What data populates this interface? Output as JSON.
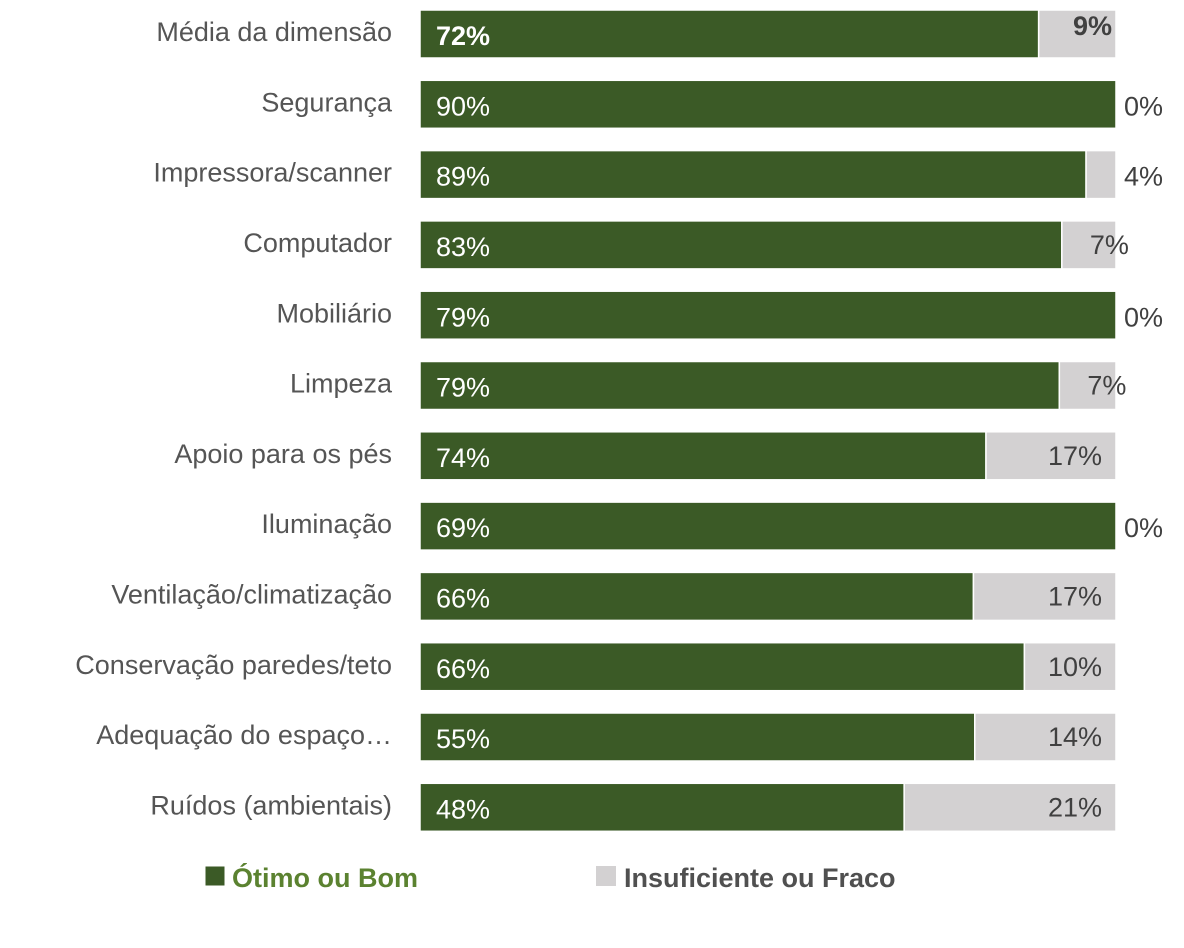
{
  "chart_data": {
    "type": "bar",
    "orientation": "horizontal",
    "stacking": "percent",
    "categories": [
      "Média da dimensão",
      "Segurança",
      "Impressora/scanner",
      "Computador",
      "Mobiliário",
      "Limpeza",
      "Apoio para os pés",
      "Iluminação",
      "Ventilação/climatização",
      "Conservação paredes/teto",
      "Adequação do espaço…",
      "Ruídos (ambientais)"
    ],
    "series": [
      {
        "name": "Ótimo ou Bom",
        "color": "#3b5a26",
        "values": [
          72,
          90,
          89,
          83,
          79,
          79,
          74,
          69,
          66,
          66,
          55,
          48
        ],
        "value_labels": [
          "72%",
          "90%",
          "89%",
          "83%",
          "79%",
          "79%",
          "74%",
          "69%",
          "66%",
          "66%",
          "55%",
          "48%"
        ]
      },
      {
        "name": "Insuficiente ou Fraco",
        "color": "#d3d1d2",
        "values": [
          9,
          0,
          4,
          7,
          0,
          7,
          17,
          0,
          17,
          10,
          14,
          21
        ],
        "value_labels": [
          "9%",
          "0%",
          "4%",
          "7%",
          "0%",
          "7%",
          "17%",
          "0%",
          "17%",
          "10%",
          "14%",
          "21%"
        ]
      }
    ],
    "legend": "bottom"
  }
}
